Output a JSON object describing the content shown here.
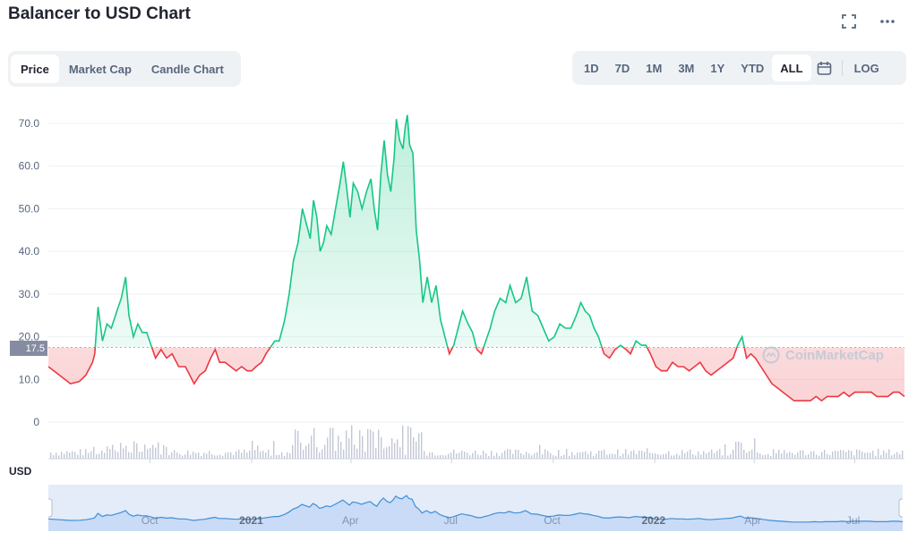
{
  "header": {
    "title": "Balancer to USD Chart",
    "fullscreen_icon": "expand-icon",
    "more_icon": "more-icon"
  },
  "tabs": [
    {
      "label": "Price",
      "active": true
    },
    {
      "label": "Market Cap",
      "active": false
    },
    {
      "label": "Candle Chart",
      "active": false
    }
  ],
  "ranges": {
    "items": [
      {
        "label": "1D",
        "active": false
      },
      {
        "label": "7D",
        "active": false
      },
      {
        "label": "1M",
        "active": false
      },
      {
        "label": "3M",
        "active": false
      },
      {
        "label": "1Y",
        "active": false
      },
      {
        "label": "YTD",
        "active": false
      },
      {
        "label": "ALL",
        "active": true
      }
    ],
    "calendar_icon": "calendar-icon",
    "log_label": "LOG"
  },
  "watermark": "CoinMarketCap",
  "chart_data": {
    "type": "area",
    "currency_label": "USD",
    "reference_price": 17.5,
    "reference_label": "17.5",
    "y_ticks": [
      "0",
      "10.0",
      "20.0",
      "30.0",
      "40.0",
      "50.0",
      "60.0",
      "70.0"
    ],
    "y_tick_values": [
      0,
      10,
      20,
      30,
      40,
      50,
      60,
      70
    ],
    "ylim": [
      -3,
      73
    ],
    "x_ticks": [
      {
        "label": "Oct",
        "major": false
      },
      {
        "label": "2021",
        "major": true
      },
      {
        "label": "Apr",
        "major": false
      },
      {
        "label": "Jul",
        "major": false
      },
      {
        "label": "Oct",
        "major": false
      },
      {
        "label": "2022",
        "major": true
      },
      {
        "label": "Apr",
        "major": false
      },
      {
        "label": "Jul",
        "major": false
      }
    ],
    "x_tick_days": [
      92,
      184,
      274,
      365,
      457,
      549,
      639,
      730
    ],
    "x_range_days": [
      0,
      775
    ],
    "series": [
      {
        "color_up": "#16c784",
        "color_down": "#ea3943",
        "points": [
          [
            0,
            13
          ],
          [
            10,
            11
          ],
          [
            20,
            9
          ],
          [
            28,
            9.5
          ],
          [
            34,
            11
          ],
          [
            40,
            14
          ],
          [
            42,
            16
          ],
          [
            45,
            27
          ],
          [
            49,
            19
          ],
          [
            53,
            23
          ],
          [
            57,
            22
          ],
          [
            62,
            26
          ],
          [
            66,
            29
          ],
          [
            70,
            34
          ],
          [
            73,
            25
          ],
          [
            77,
            20
          ],
          [
            81,
            23
          ],
          [
            85,
            21
          ],
          [
            89,
            21
          ],
          [
            93,
            18
          ],
          [
            97,
            15
          ],
          [
            102,
            17
          ],
          [
            107,
            15
          ],
          [
            112,
            16
          ],
          [
            118,
            13
          ],
          [
            124,
            13
          ],
          [
            128,
            11
          ],
          [
            132,
            9
          ],
          [
            137,
            11
          ],
          [
            142,
            12
          ],
          [
            147,
            15
          ],
          [
            151,
            17
          ],
          [
            155,
            14
          ],
          [
            160,
            14
          ],
          [
            165,
            13
          ],
          [
            170,
            12
          ],
          [
            175,
            13
          ],
          [
            180,
            12
          ],
          [
            184,
            12
          ],
          [
            188,
            13
          ],
          [
            193,
            14
          ],
          [
            197,
            16
          ],
          [
            201,
            17.5
          ],
          [
            205,
            19
          ],
          [
            209,
            19
          ],
          [
            214,
            24
          ],
          [
            218,
            30
          ],
          [
            222,
            38
          ],
          [
            226,
            42
          ],
          [
            230,
            50
          ],
          [
            234,
            46
          ],
          [
            237,
            43
          ],
          [
            240,
            52
          ],
          [
            243,
            48
          ],
          [
            246,
            40
          ],
          [
            249,
            42
          ],
          [
            252,
            46
          ],
          [
            256,
            44
          ],
          [
            260,
            50
          ],
          [
            264,
            56
          ],
          [
            267,
            61
          ],
          [
            270,
            55
          ],
          [
            273,
            48
          ],
          [
            276,
            56
          ],
          [
            280,
            54
          ],
          [
            284,
            50
          ],
          [
            288,
            54
          ],
          [
            292,
            57
          ],
          [
            295,
            50
          ],
          [
            298,
            45
          ],
          [
            301,
            58
          ],
          [
            304,
            66
          ],
          [
            307,
            58
          ],
          [
            310,
            54
          ],
          [
            313,
            62
          ],
          [
            315,
            71
          ],
          [
            318,
            66
          ],
          [
            321,
            64
          ],
          [
            323,
            69
          ],
          [
            325,
            72
          ],
          [
            327,
            65
          ],
          [
            330,
            63
          ],
          [
            333,
            45
          ],
          [
            336,
            38
          ],
          [
            339,
            28
          ],
          [
            343,
            34
          ],
          [
            347,
            28
          ],
          [
            351,
            32
          ],
          [
            355,
            24
          ],
          [
            359,
            20
          ],
          [
            363,
            16
          ],
          [
            367,
            18
          ],
          [
            371,
            22
          ],
          [
            375,
            26
          ],
          [
            380,
            23
          ],
          [
            384,
            21
          ],
          [
            388,
            17
          ],
          [
            392,
            16
          ],
          [
            396,
            19
          ],
          [
            400,
            22
          ],
          [
            404,
            26
          ],
          [
            409,
            29
          ],
          [
            414,
            28
          ],
          [
            418,
            32
          ],
          [
            423,
            28
          ],
          [
            428,
            29
          ],
          [
            433,
            34
          ],
          [
            438,
            26
          ],
          [
            443,
            25
          ],
          [
            448,
            22
          ],
          [
            453,
            19
          ],
          [
            458,
            20
          ],
          [
            463,
            23
          ],
          [
            468,
            22
          ],
          [
            473,
            22
          ],
          [
            478,
            25
          ],
          [
            482,
            28
          ],
          [
            486,
            26
          ],
          [
            490,
            25
          ],
          [
            494,
            22
          ],
          [
            498,
            20
          ],
          [
            503,
            16
          ],
          [
            508,
            15
          ],
          [
            513,
            17
          ],
          [
            518,
            18
          ],
          [
            523,
            17
          ],
          [
            527,
            16
          ],
          [
            532,
            19
          ],
          [
            537,
            18
          ],
          [
            541,
            18
          ],
          [
            545,
            16
          ],
          [
            550,
            13
          ],
          [
            555,
            12
          ],
          [
            560,
            12
          ],
          [
            565,
            14
          ],
          [
            570,
            13
          ],
          [
            575,
            13
          ],
          [
            580,
            12
          ],
          [
            585,
            13
          ],
          [
            590,
            14
          ],
          [
            595,
            12
          ],
          [
            600,
            11
          ],
          [
            605,
            12
          ],
          [
            610,
            13
          ],
          [
            615,
            14
          ],
          [
            620,
            15
          ],
          [
            624,
            18
          ],
          [
            628,
            20
          ],
          [
            632,
            15
          ],
          [
            636,
            16
          ],
          [
            640,
            15
          ],
          [
            645,
            13
          ],
          [
            650,
            11
          ],
          [
            655,
            9
          ],
          [
            660,
            8
          ],
          [
            665,
            7
          ],
          [
            670,
            6
          ],
          [
            675,
            5
          ],
          [
            680,
            5
          ],
          [
            685,
            5
          ],
          [
            690,
            5
          ],
          [
            695,
            6
          ],
          [
            700,
            5
          ],
          [
            705,
            6
          ],
          [
            710,
            6
          ],
          [
            715,
            6
          ],
          [
            720,
            7
          ],
          [
            725,
            6
          ],
          [
            730,
            7
          ],
          [
            735,
            7
          ],
          [
            740,
            7
          ],
          [
            745,
            7
          ],
          [
            750,
            6
          ],
          [
            755,
            6
          ],
          [
            760,
            6
          ],
          [
            765,
            7
          ],
          [
            770,
            7
          ],
          [
            775,
            6
          ]
        ]
      }
    ]
  }
}
